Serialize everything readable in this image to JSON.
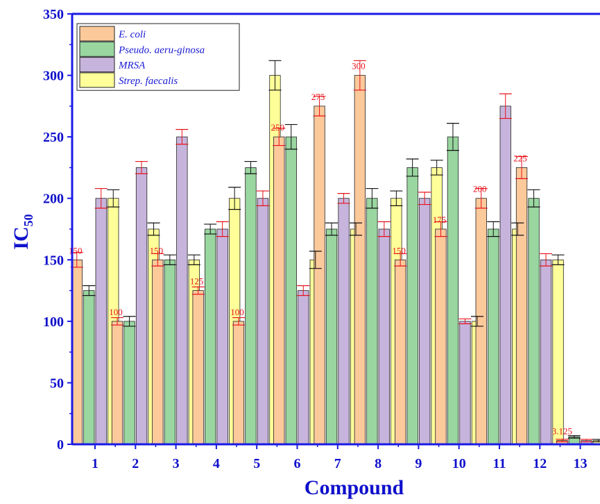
{
  "chart_data": {
    "type": "bar",
    "title": "",
    "xlabel": "Compound",
    "ylabel": "IC",
    "ylabel_sub": "50",
    "ylim": [
      0,
      350
    ],
    "yticks": [
      0,
      50,
      100,
      150,
      200,
      250,
      300,
      350
    ],
    "categories": [
      "1",
      "2",
      "3",
      "4",
      "5",
      "6",
      "7",
      "8",
      "9",
      "10",
      "11",
      "12",
      "13"
    ],
    "legend_position": "top-left",
    "grid": false,
    "series": [
      {
        "name": "E. coli",
        "color": "#fcc99b",
        "values": [
          150,
          100,
          150,
          125,
          100,
          250,
          275,
          300,
          150,
          175,
          200,
          225,
          3.125
        ],
        "errors": [
          6,
          3,
          5,
          3,
          3,
          7,
          8,
          12,
          5,
          6,
          8,
          9,
          1
        ]
      },
      {
        "name": "Pseudo. aeru-ginosa",
        "color": "#99d6a0",
        "values": [
          125,
          100,
          150,
          175,
          225,
          250,
          175,
          200,
          225,
          250,
          175,
          200,
          6
        ],
        "errors": [
          4,
          4,
          4,
          4,
          5,
          10,
          5,
          8,
          7,
          11,
          6,
          7,
          1
        ]
      },
      {
        "name": "MRSA",
        "color": "#c7b4dc",
        "values": [
          200,
          225,
          250,
          175,
          200,
          125,
          200,
          175,
          200,
          100,
          275,
          150,
          3
        ],
        "errors": [
          8,
          5,
          6,
          6,
          6,
          4,
          4,
          6,
          5,
          2,
          10,
          5,
          1
        ]
      },
      {
        "name": "Strep. faecalis",
        "color": "#ffff99",
        "values": [
          200,
          175,
          150,
          200,
          300,
          150,
          175,
          200,
          225,
          100,
          175,
          150,
          3
        ],
        "errors": [
          7,
          5,
          4,
          9,
          12,
          7,
          5,
          6,
          6,
          4,
          5,
          4,
          1
        ]
      }
    ],
    "annotations": [
      "150",
      "100",
      "150",
      "125",
      "100",
      "250",
      "275",
      "300",
      "150",
      "175",
      "200",
      "225",
      "3.125"
    ]
  }
}
